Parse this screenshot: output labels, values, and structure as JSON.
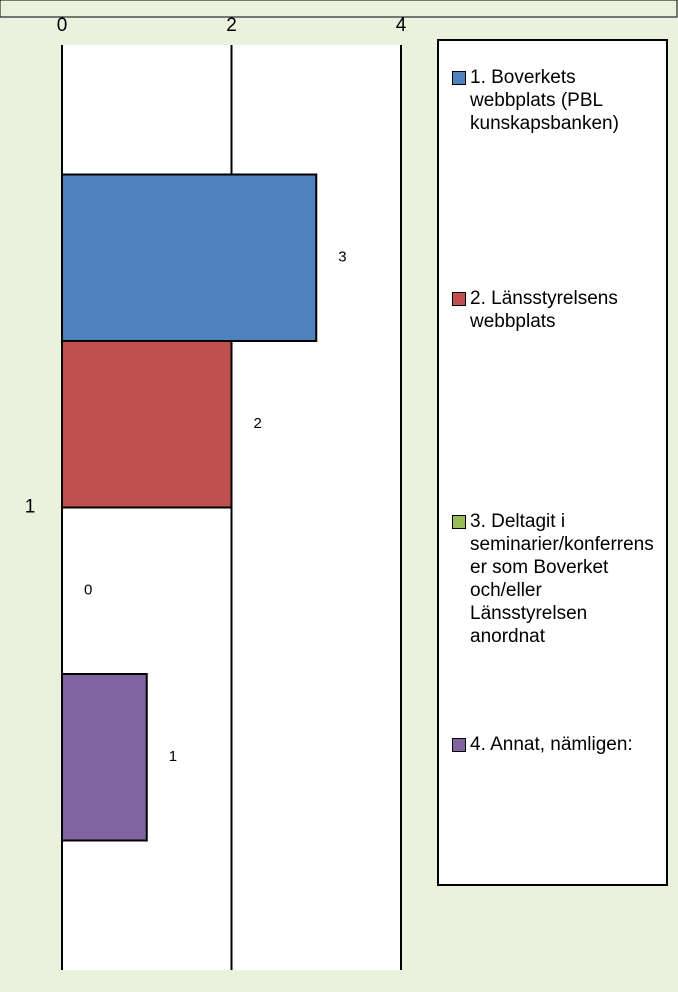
{
  "chart_data": {
    "type": "bar",
    "orientation": "horizontal",
    "categories": [
      "1"
    ],
    "series": [
      {
        "name": "1. Boverkets webbplats (PBL kunskapsbanken)",
        "color": "#4f81bd",
        "values": [
          3
        ]
      },
      {
        "name": "2. Länsstyrelsens webbplats",
        "color": "#c0504d",
        "values": [
          2
        ]
      },
      {
        "name": "3. Deltagit i seminarier/konferrenser som Boverket och/eller Länsstyrelsen anordnat",
        "color": "#9bbb59",
        "values": [
          0
        ]
      },
      {
        "name": "4. Annat, nämligen:",
        "color": "#8064a2",
        "values": [
          1
        ]
      }
    ],
    "xlim": [
      0,
      4
    ],
    "xticks": [
      0,
      2,
      4
    ],
    "grid": true,
    "legend": "right"
  }
}
